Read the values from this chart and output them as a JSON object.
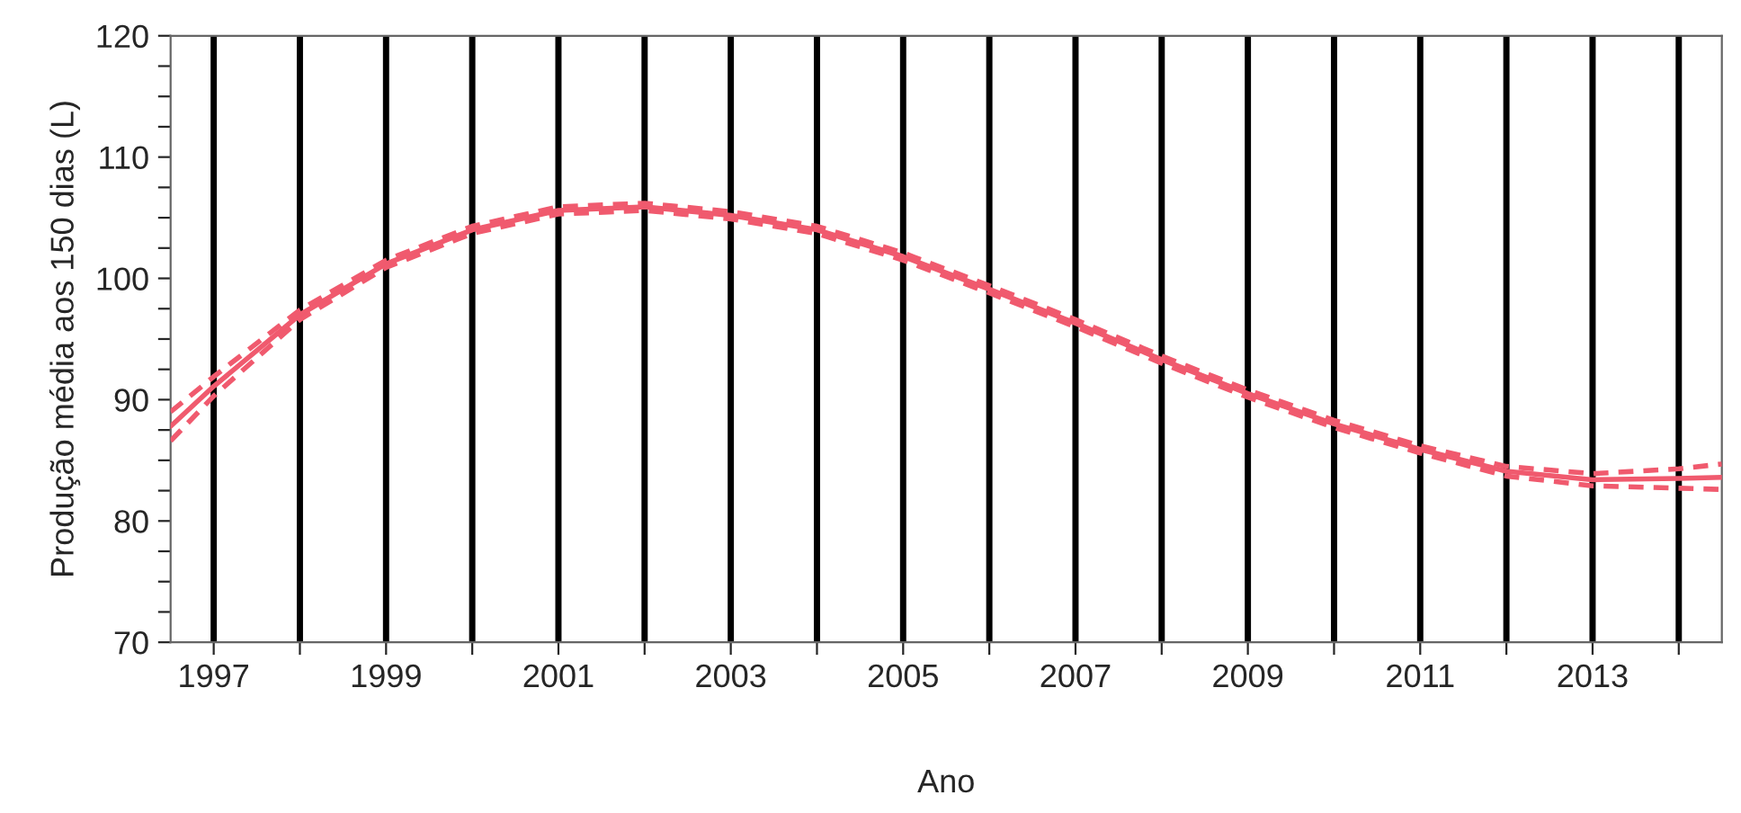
{
  "chart_data": {
    "type": "line",
    "xlabel": "Ano",
    "ylabel": "Produção média aos 150 dias (L)",
    "x": [
      1996.5,
      1997,
      1998,
      1999,
      2000,
      2001,
      2002,
      2003,
      2004,
      2005,
      2006,
      2007,
      2008,
      2009,
      2010,
      2011,
      2012,
      2013,
      2014,
      2014.5
    ],
    "series": [
      {
        "color": "#f05a6e",
        "line_style": "solid",
        "values": [
          87.8,
          91.1,
          97.0,
          101.2,
          104.0,
          105.6,
          105.9,
          105.2,
          104.0,
          101.8,
          99.1,
          96.3,
          93.3,
          90.5,
          88.0,
          85.9,
          84.1,
          83.4,
          83.5,
          83.6
        ]
      },
      {
        "color": "#f05a6e",
        "line_style": "dashed",
        "values": [
          86.6,
          90.3,
          96.6,
          100.9,
          103.7,
          105.3,
          105.6,
          104.9,
          103.7,
          101.5,
          98.8,
          96.0,
          93.0,
          90.2,
          87.7,
          85.6,
          83.7,
          82.9,
          82.7,
          82.6
        ]
      },
      {
        "color": "#f05a6e",
        "line_style": "dashed",
        "values": [
          89.0,
          91.9,
          97.4,
          101.5,
          104.3,
          105.9,
          106.2,
          105.5,
          104.3,
          102.1,
          99.4,
          96.6,
          93.6,
          90.8,
          88.3,
          86.2,
          84.5,
          83.9,
          84.3,
          84.7
        ]
      }
    ],
    "xlim": [
      1996.5,
      2014.5
    ],
    "xticks": [
      1997,
      {
        "value": 1998,
        "label": null
      },
      1999,
      {
        "value": 2000,
        "label": null
      },
      2001,
      {
        "value": 2002,
        "label": null
      },
      2003,
      {
        "value": 2004,
        "label": null
      },
      2005,
      {
        "value": 2006,
        "label": null
      },
      2007,
      {
        "value": 2008,
        "label": null
      },
      2009,
      {
        "value": 2010,
        "label": null
      },
      2011,
      {
        "value": 2012,
        "label": null
      },
      2013,
      {
        "value": 2014,
        "label": null
      }
    ],
    "ylim": [
      70,
      120
    ],
    "yticks": [
      70,
      {
        "value": 72.5,
        "label": null
      },
      {
        "value": 75,
        "label": null
      },
      {
        "value": 77.5,
        "label": null
      },
      80,
      {
        "value": 82.5,
        "label": null
      },
      {
        "value": 85,
        "label": null
      },
      {
        "value": 87.5,
        "label": null
      },
      90,
      {
        "value": 92.5,
        "label": null
      },
      {
        "value": 95,
        "label": null
      },
      {
        "value": 97.5,
        "label": null
      },
      100,
      {
        "value": 102.5,
        "label": null
      },
      {
        "value": 105,
        "label": null
      },
      {
        "value": 107.5,
        "label": null
      },
      110,
      {
        "value": 112.5,
        "label": null
      },
      {
        "value": 115,
        "label": null
      },
      {
        "value": 117.5,
        "label": null
      },
      120
    ],
    "grid": "x"
  }
}
